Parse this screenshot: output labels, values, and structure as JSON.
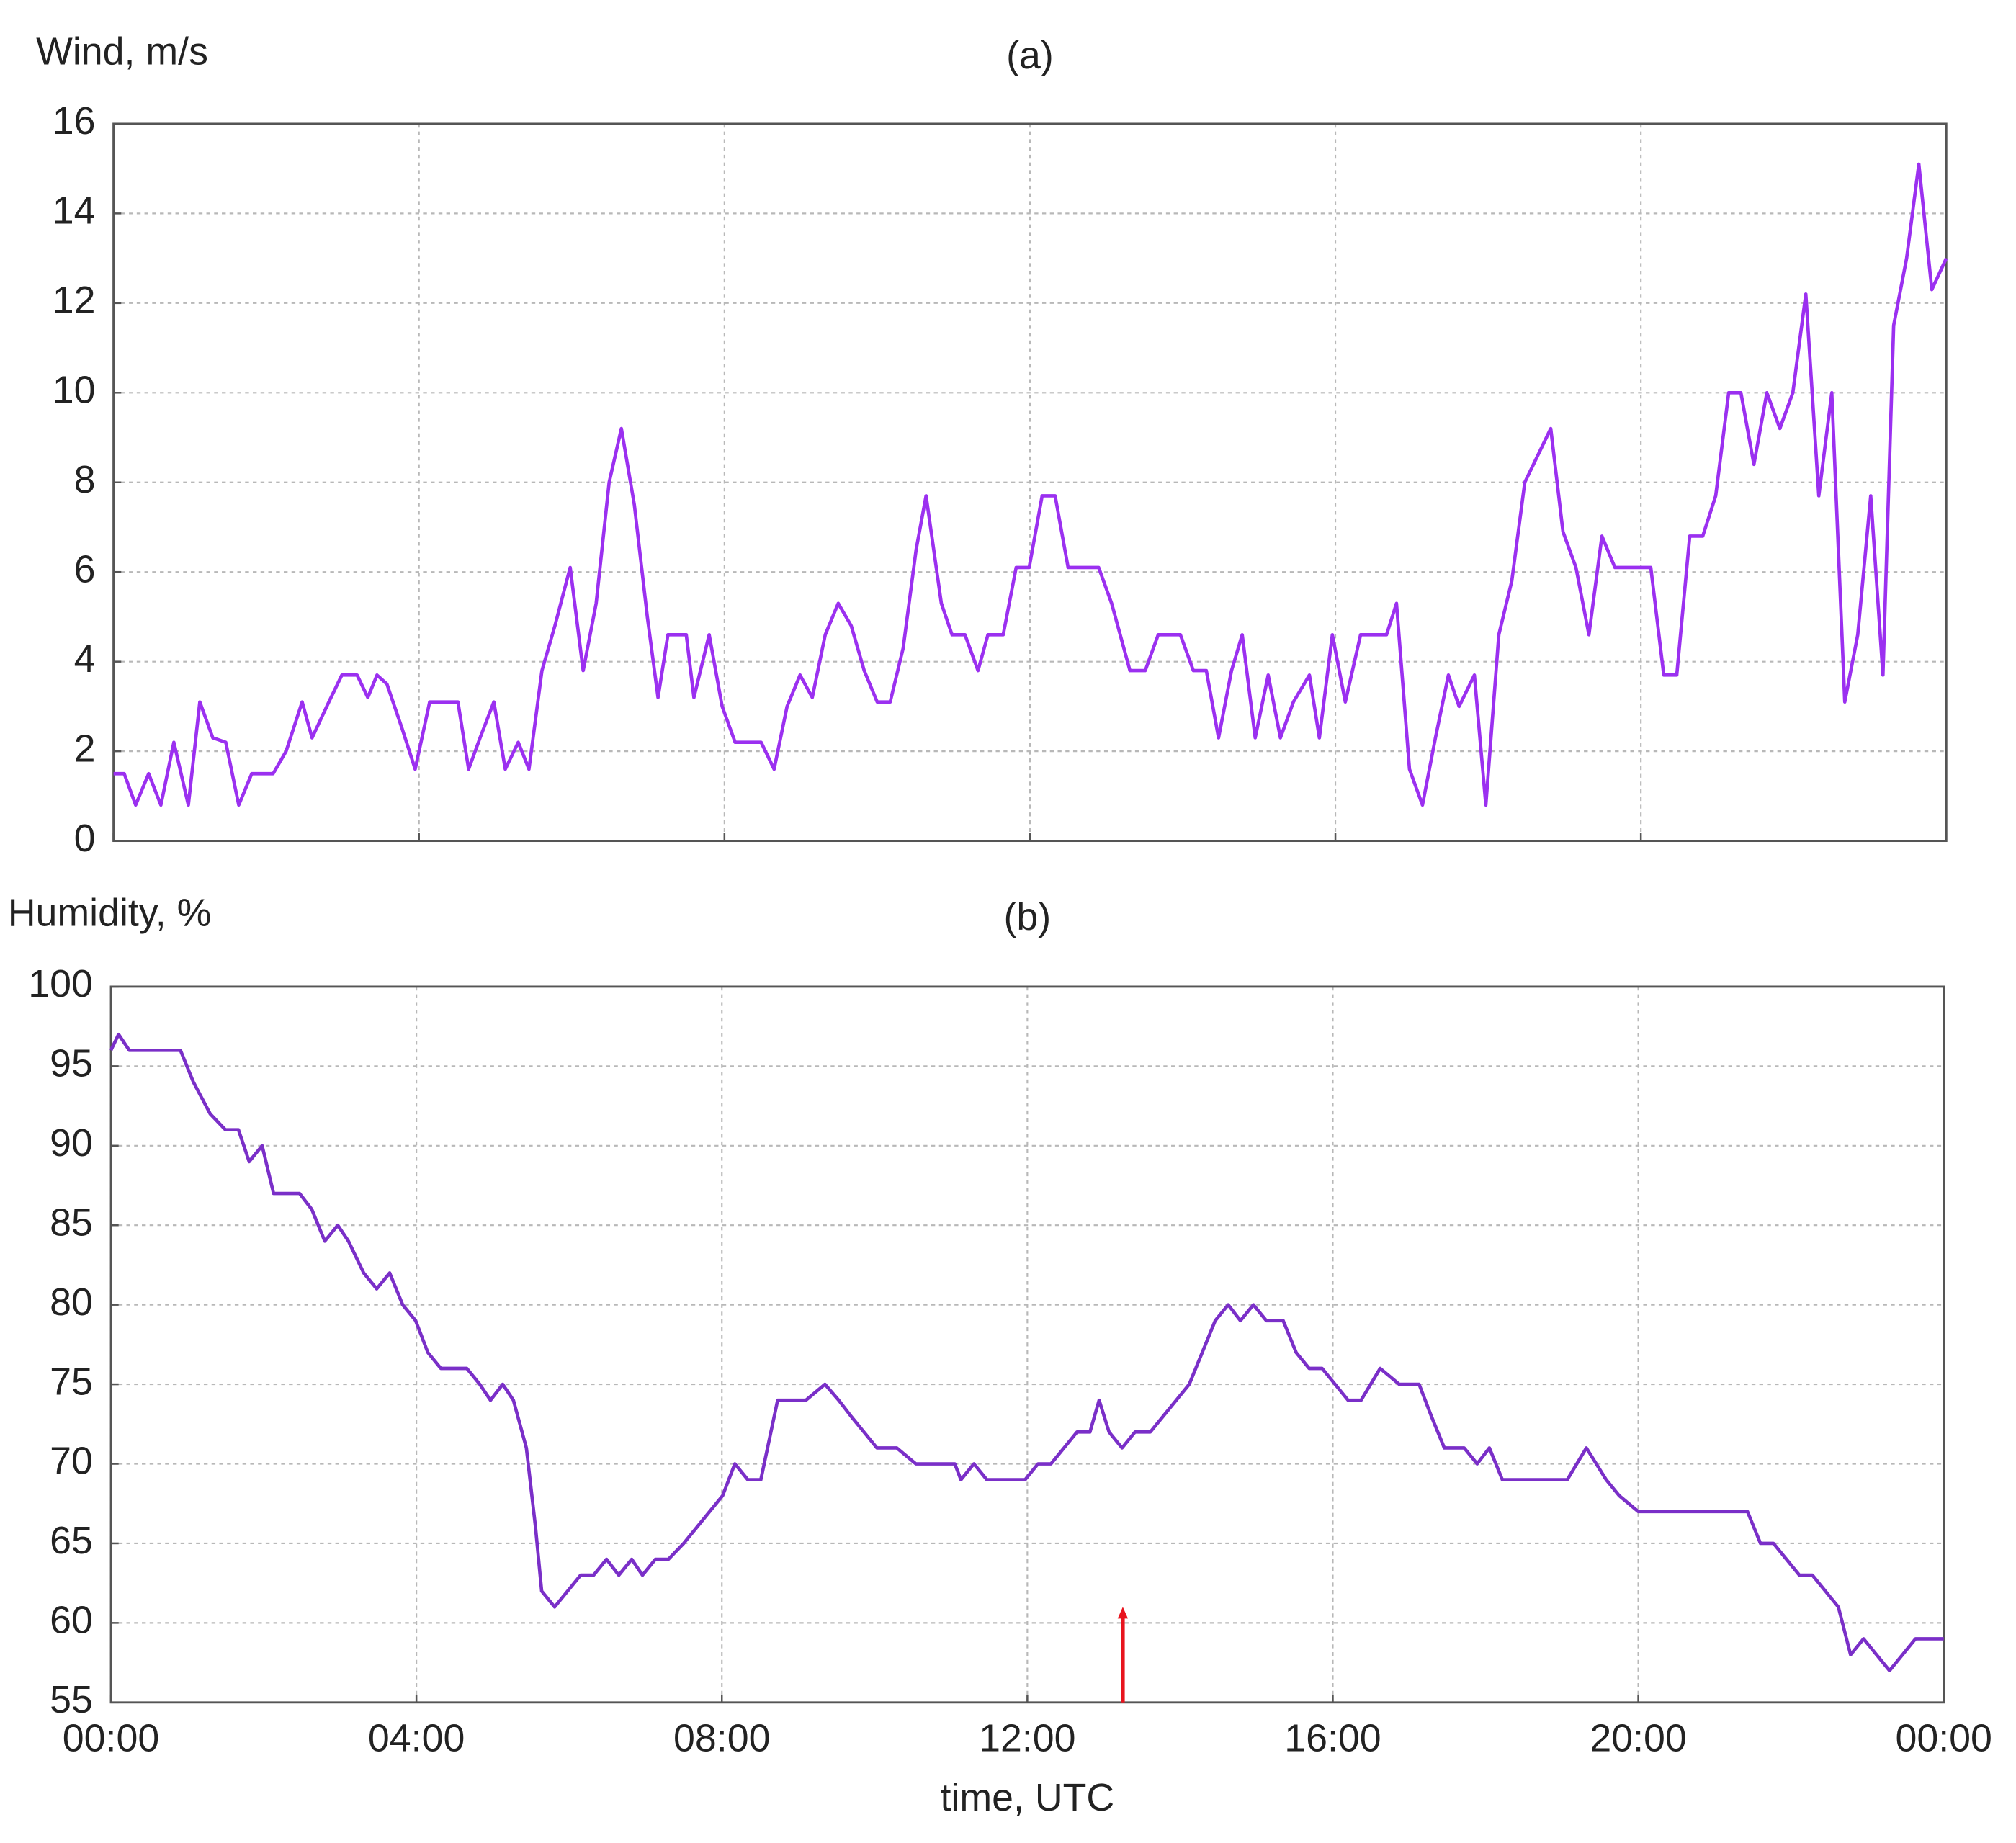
{
  "chart_data": [
    {
      "type": "line",
      "title": "(a)",
      "ylabel": "Wind, m/s",
      "color": "#9b30f0",
      "xlim": [
        0,
        24
      ],
      "xticks": [
        0,
        4,
        8,
        12,
        16,
        20,
        24
      ],
      "xtick_labels_shown": false,
      "ylim": [
        0,
        16
      ],
      "yticks": [
        0,
        2,
        4,
        6,
        8,
        10,
        12,
        14,
        16
      ],
      "grid": true,
      "x": [
        0,
        0.14,
        0.29,
        0.46,
        0.62,
        0.79,
        0.98,
        1.13,
        1.3,
        1.47,
        1.64,
        1.81,
        2.09,
        2.26,
        2.47,
        2.6,
        2.82,
        2.99,
        3.19,
        3.33,
        3.45,
        3.58,
        3.78,
        3.95,
        4.14,
        4.51,
        4.65,
        4.8,
        4.98,
        5.13,
        5.3,
        5.44,
        5.61,
        5.78,
        5.98,
        6.15,
        6.32,
        6.49,
        6.65,
        6.82,
        6.99,
        7.13,
        7.26,
        7.5,
        7.6,
        7.8,
        7.97,
        8.14,
        8.48,
        8.65,
        8.82,
        8.99,
        9.15,
        9.32,
        9.49,
        9.66,
        9.83,
        10,
        10.17,
        10.34,
        10.51,
        10.64,
        10.84,
        10.98,
        11.15,
        11.32,
        11.45,
        11.65,
        11.82,
        11.99,
        12.16,
        12.33,
        12.5,
        12.9,
        13.07,
        13.31,
        13.51,
        13.68,
        13.97,
        14.14,
        14.31,
        14.47,
        14.64,
        14.78,
        14.95,
        15.12,
        15.28,
        15.45,
        15.66,
        15.79,
        15.96,
        16.13,
        16.33,
        16.67,
        16.8,
        16.97,
        17.14,
        17.31,
        17.48,
        17.62,
        17.82,
        17.97,
        18.14,
        18.31,
        18.48,
        18.82,
        18.98,
        19.15,
        19.32,
        19.49,
        19.66,
        20.13,
        20.3,
        20.47,
        20.64,
        20.81,
        20.98,
        21.15,
        21.31,
        21.48,
        21.65,
        21.82,
        21.99,
        22.16,
        22.33,
        22.5,
        22.67,
        22.84,
        23.01,
        23.17,
        23.31,
        23.48,
        23.64,
        23.81,
        24
      ],
      "values": [
        1.5,
        1.5,
        0.8,
        1.5,
        0.8,
        2.2,
        0.8,
        3.1,
        2.3,
        2.2,
        0.8,
        1.5,
        1.5,
        2,
        3.1,
        2.3,
        3.1,
        3.7,
        3.7,
        3.2,
        3.7,
        3.5,
        2.5,
        1.6,
        3.1,
        3.1,
        1.6,
        2.3,
        3.1,
        1.6,
        2.2,
        1.6,
        3.8,
        4.8,
        6.1,
        3.8,
        5.3,
        8,
        9.2,
        7.5,
        5,
        3.2,
        4.6,
        4.6,
        3.2,
        4.6,
        3,
        2.2,
        2.2,
        1.6,
        3,
        3.7,
        3.2,
        4.6,
        5.3,
        4.8,
        3.8,
        3.1,
        3.1,
        4.3,
        6.5,
        7.7,
        5.3,
        4.6,
        4.6,
        3.8,
        4.6,
        4.6,
        6.1,
        6.1,
        7.7,
        7.7,
        6.1,
        6.1,
        5.3,
        3.8,
        3.8,
        4.6,
        4.6,
        3.8,
        3.8,
        2.3,
        3.8,
        4.6,
        2.3,
        3.7,
        2.3,
        3.1,
        3.7,
        2.3,
        4.6,
        3.1,
        4.6,
        4.6,
        5.3,
        1.6,
        0.8,
        2.3,
        3.7,
        3,
        3.7,
        0.8,
        4.6,
        5.8,
        8,
        9.2,
        6.9,
        6.1,
        4.6,
        6.8,
        6.1,
        6.1,
        3.7,
        3.7,
        6.8,
        6.8,
        7.7,
        10,
        10,
        8.4,
        10,
        9.2,
        10,
        12.2,
        7.7,
        10,
        3.1,
        4.6,
        7.7,
        3.7,
        11.5,
        13,
        15.1,
        12.3,
        13
      ]
    },
    {
      "type": "line",
      "title": "(b)",
      "ylabel": "Humidity, %",
      "xlabel": "time, UTC",
      "color": "#7a2fc8",
      "xlim": [
        0,
        24
      ],
      "xticks": [
        {
          "value": 0,
          "label": "00:00"
        },
        {
          "value": 4,
          "label": "04:00"
        },
        {
          "value": 8,
          "label": "08:00"
        },
        {
          "value": 12,
          "label": "12:00"
        },
        {
          "value": 16,
          "label": "16:00"
        },
        {
          "value": 20,
          "label": "20:00"
        },
        {
          "value": 24,
          "label": "00:00"
        }
      ],
      "xtick_labels_shown": true,
      "ylim": [
        55,
        100
      ],
      "yticks": [
        55,
        60,
        65,
        70,
        75,
        80,
        85,
        90,
        95,
        100
      ],
      "grid": true,
      "arrow": {
        "x": 13.25,
        "top": 61,
        "color": "#e8141e"
      },
      "x": [
        0,
        0.1,
        0.24,
        0.91,
        1.08,
        1.3,
        1.5,
        1.67,
        1.81,
        1.98,
        2.13,
        2.47,
        2.63,
        2.8,
        2.97,
        3.11,
        3.31,
        3.48,
        3.65,
        3.82,
        3.99,
        4.15,
        4.32,
        4.66,
        4.83,
        4.97,
        5.13,
        5.27,
        5.44,
        5.56,
        5.64,
        5.81,
        5.98,
        6.15,
        6.32,
        6.49,
        6.65,
        6.82,
        6.96,
        7.13,
        7.3,
        7.5,
        7.67,
        7.84,
        8.01,
        8.17,
        8.34,
        8.51,
        8.73,
        9.1,
        9.35,
        9.53,
        9.69,
        9.86,
        10.03,
        10.29,
        10.54,
        11.05,
        11.13,
        11.3,
        11.47,
        11.97,
        12.14,
        12.31,
        12.48,
        12.65,
        12.82,
        12.94,
        13.07,
        13.24,
        13.41,
        13.61,
        13.78,
        13.95,
        14.12,
        14.29,
        14.46,
        14.63,
        14.79,
        14.96,
        15.13,
        15.35,
        15.52,
        15.69,
        15.86,
        16.03,
        16.2,
        16.37,
        16.62,
        16.87,
        17.13,
        17.29,
        17.46,
        17.72,
        17.89,
        18.05,
        18.22,
        19.07,
        19.32,
        19.58,
        19.75,
        20,
        21.43,
        21.6,
        21.77,
        21.94,
        22.11,
        22.28,
        22.45,
        22.62,
        22.78,
        22.95,
        23.12,
        23.29,
        23.46,
        23.63,
        24
      ],
      "values": [
        96,
        97,
        96,
        96,
        94,
        92,
        91,
        91,
        89,
        90,
        87,
        87,
        86,
        84,
        85,
        84,
        82,
        81,
        82,
        80,
        79,
        77,
        76,
        76,
        75,
        74,
        75,
        74,
        71,
        66,
        62,
        61,
        62,
        63,
        63,
        64,
        63,
        64,
        63,
        64,
        64,
        65,
        66,
        67,
        68,
        70,
        69,
        69,
        74,
        74,
        75,
        74,
        73,
        72,
        71,
        71,
        70,
        70,
        69,
        70,
        69,
        69,
        70,
        70,
        71,
        72,
        72,
        74,
        72,
        71,
        72,
        72,
        73,
        74,
        75,
        77,
        79,
        80,
        79,
        80,
        79,
        79,
        77,
        76,
        76,
        75,
        74,
        74,
        76,
        75,
        75,
        73,
        71,
        71,
        70,
        71,
        69,
        69,
        71,
        69,
        68,
        67,
        67,
        65,
        65,
        64,
        63,
        63,
        62,
        61,
        58,
        59,
        58,
        57,
        58,
        59,
        59
      ]
    }
  ]
}
